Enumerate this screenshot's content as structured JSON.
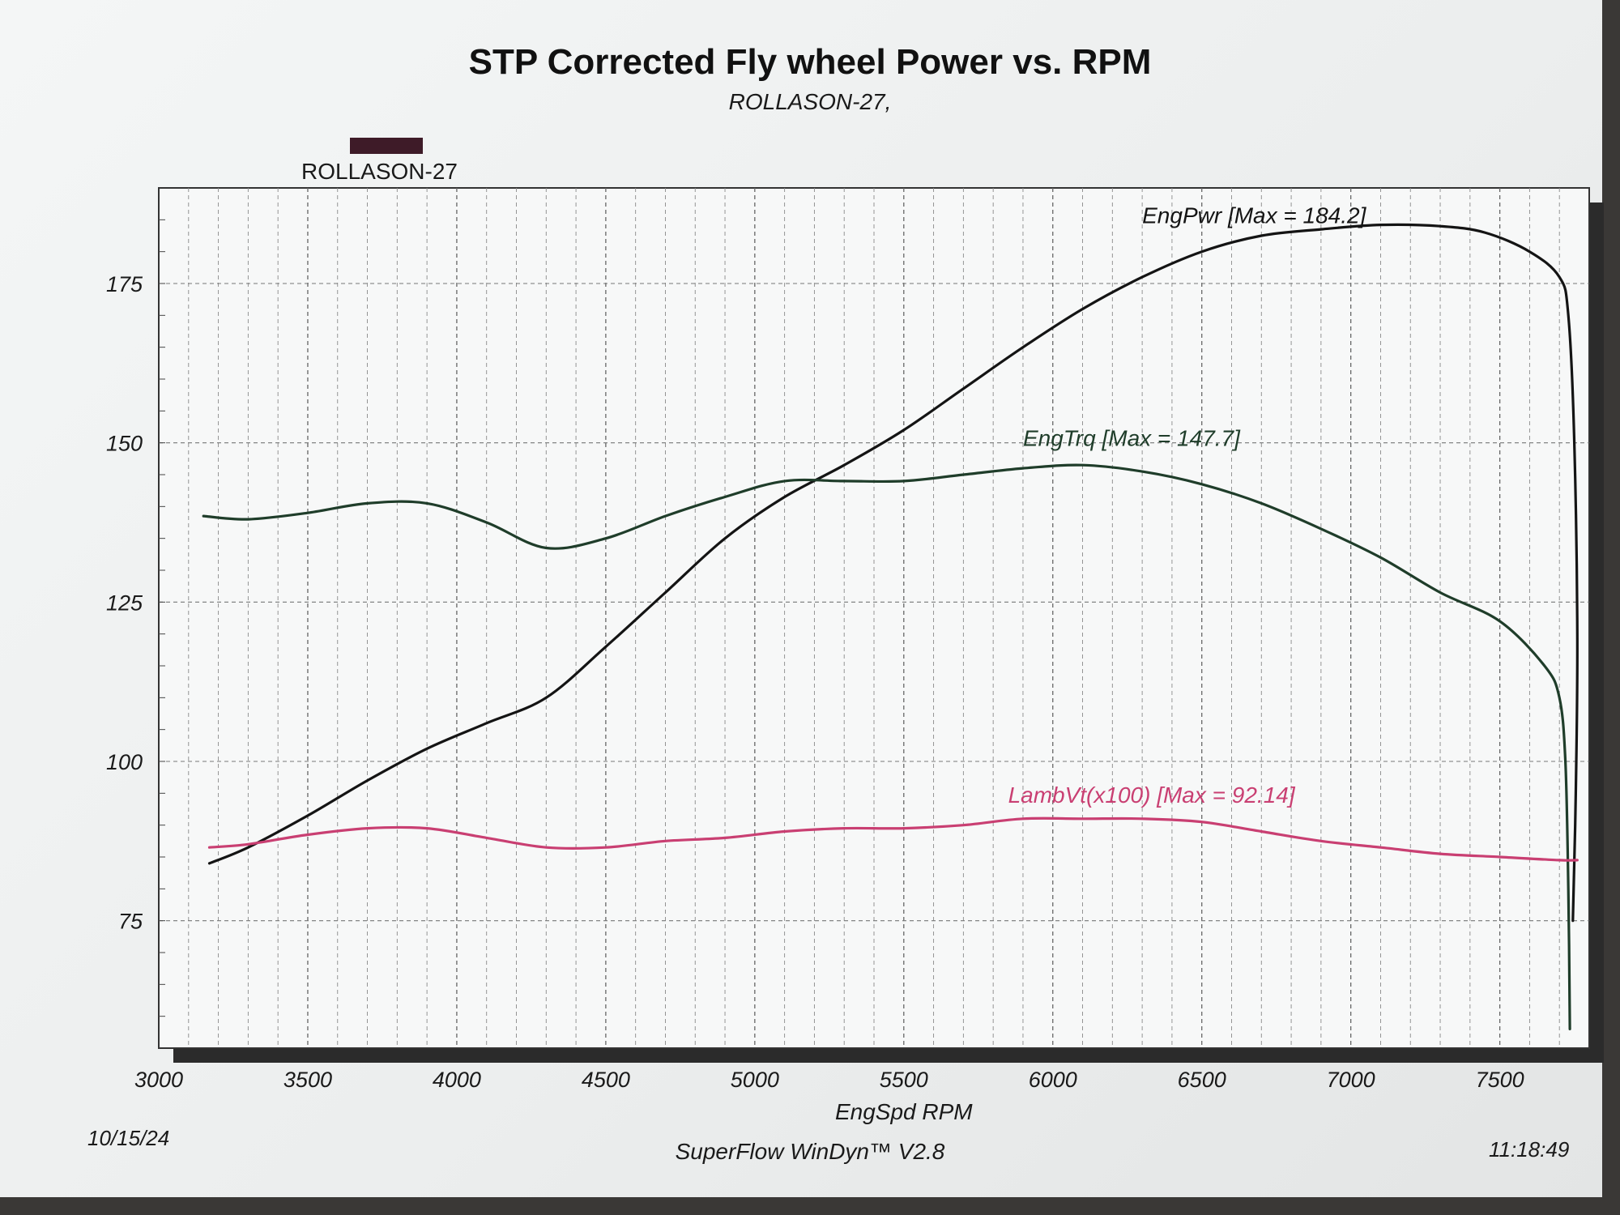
{
  "page": {
    "date": "10/15/24",
    "software": "SuperFlow WinDyn™ V2.8",
    "time": "11:18:49",
    "legend_label": "ROLLASON-27",
    "legend_color": "#3e1b28"
  },
  "chart_data": {
    "type": "line",
    "title": "STP Corrected Fly wheel Power vs. RPM",
    "subtitle": "ROLLASON-27,",
    "xlabel": "EngSpd  RPM",
    "ylabel": "",
    "xlim": [
      3000,
      7800
    ],
    "ylim": [
      55,
      190
    ],
    "xticks": [
      "3000",
      "3500",
      "4000",
      "4500",
      "5000",
      "5500",
      "6000",
      "6500",
      "7000",
      "7500"
    ],
    "yticks": [
      "75",
      "100",
      "125",
      "150",
      "175"
    ],
    "grid": true,
    "series": [
      {
        "name": "EngPwr",
        "annotation": "EngPwr [Max = 184.2]",
        "color": "#141414",
        "x": [
          3170,
          3300,
          3500,
          3700,
          3900,
          4100,
          4300,
          4500,
          4700,
          4900,
          5100,
          5300,
          5500,
          5700,
          5900,
          6100,
          6300,
          6500,
          6700,
          6900,
          7100,
          7300,
          7450,
          7600,
          7700,
          7730,
          7750,
          7760,
          7755,
          7745
        ],
        "y": [
          84,
          86.5,
          91.5,
          97,
          102,
          106,
          110,
          118,
          126.5,
          135,
          141.5,
          146.5,
          152,
          158.5,
          165,
          171,
          176,
          180,
          182.5,
          183.5,
          184.2,
          184,
          183,
          180,
          176,
          170,
          150,
          120,
          95,
          75
        ]
      },
      {
        "name": "EngTrq",
        "annotation": "EngTrq [Max = 147.7]",
        "color": "#1f3d2a",
        "x": [
          3150,
          3300,
          3500,
          3700,
          3900,
          4100,
          4300,
          4500,
          4700,
          4900,
          5100,
          5300,
          5500,
          5700,
          5900,
          6100,
          6300,
          6500,
          6700,
          6900,
          7100,
          7300,
          7500,
          7650,
          7700,
          7720,
          7730,
          7735
        ],
        "y": [
          138.5,
          138,
          139,
          140.5,
          140.5,
          137.5,
          133.5,
          135,
          138.5,
          141.5,
          144,
          144,
          144,
          145,
          146,
          146.5,
          145.5,
          143.5,
          140.5,
          136.5,
          132,
          126.5,
          122,
          115,
          110,
          100,
          80,
          58
        ]
      },
      {
        "name": "LambVt(x100)",
        "annotation": "LambVt(x100) [Max = 92.14]",
        "color": "#c93f72",
        "x": [
          3170,
          3300,
          3500,
          3700,
          3900,
          4100,
          4300,
          4500,
          4700,
          4900,
          5100,
          5300,
          5500,
          5700,
          5900,
          6100,
          6300,
          6500,
          6700,
          6900,
          7100,
          7300,
          7500,
          7700,
          7760
        ],
        "y": [
          86.5,
          87,
          88.5,
          89.5,
          89.5,
          88,
          86.5,
          86.5,
          87.5,
          88,
          89,
          89.5,
          89.5,
          90,
          91,
          91,
          91,
          90.5,
          89,
          87.5,
          86.5,
          85.5,
          85,
          84.5,
          84.5
        ]
      }
    ]
  }
}
